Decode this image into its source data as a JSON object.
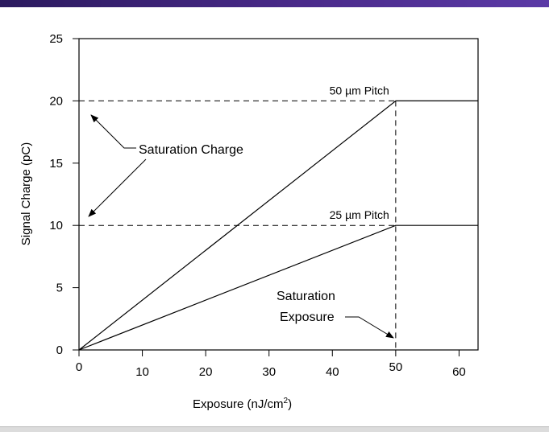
{
  "chart_data": {
    "type": "line",
    "xlabel": "Exposure (nJ/cm",
    "xlabel_sup": "2",
    "xlabel_close": ")",
    "ylabel": "Signal Charge (pC)",
    "xlim": [
      0,
      63
    ],
    "ylim": [
      0,
      25
    ],
    "xticks": [
      0,
      10,
      20,
      30,
      40,
      50,
      60
    ],
    "yticks": [
      0,
      5,
      10,
      15,
      20,
      25
    ],
    "grid": false,
    "series": [
      {
        "name": "50 µm Pitch",
        "x": [
          0,
          50,
          63
        ],
        "y": [
          0,
          20,
          20
        ]
      },
      {
        "name": "25 µm Pitch",
        "x": [
          0,
          50,
          63
        ],
        "y": [
          0,
          10,
          10
        ]
      }
    ],
    "reference_lines": {
      "horizontal": [
        20,
        10
      ],
      "vertical": [
        50
      ]
    },
    "annotations": {
      "saturation_charge": "Saturation Charge",
      "saturation_exposure_line1": "Saturation",
      "saturation_exposure_line2": "Exposure"
    }
  }
}
